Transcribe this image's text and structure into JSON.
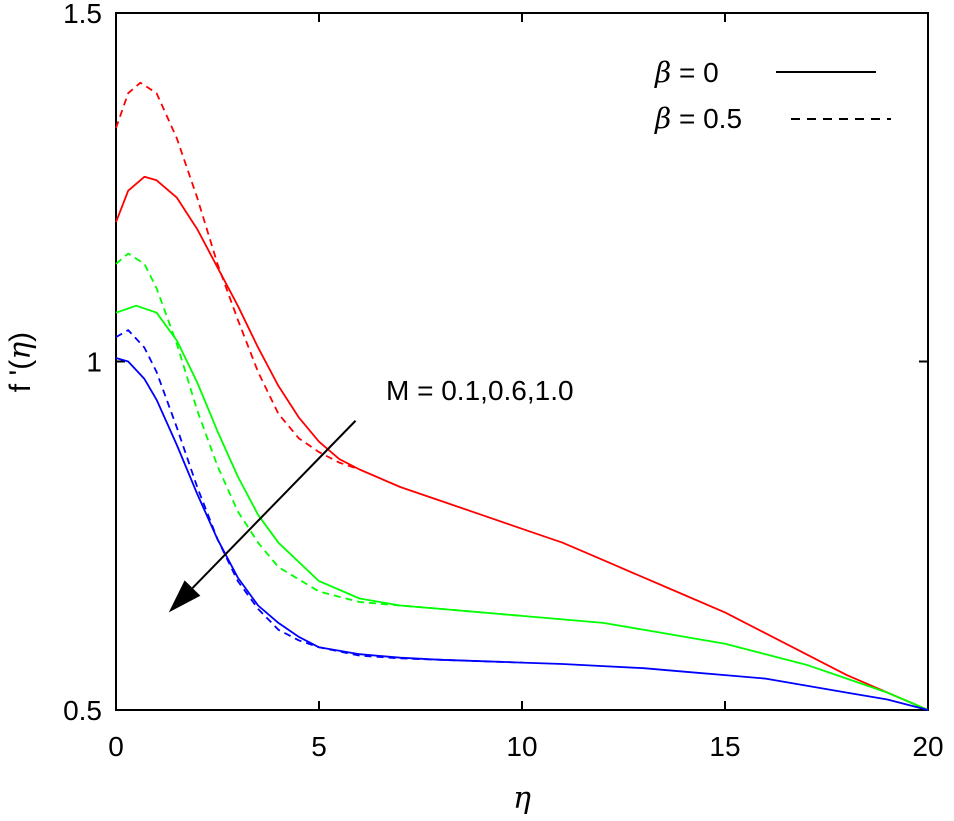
{
  "chart_data": {
    "type": "line",
    "xlabel": "η",
    "ylabel": "f '(η)",
    "ylabel_prefix": "f '(",
    "ylabel_var": "η",
    "ylabel_suffix": ")",
    "xlim": [
      0,
      20
    ],
    "ylim": [
      0.5,
      1.5
    ],
    "xticks": [
      0,
      5,
      10,
      15,
      20
    ],
    "xtick_labels": [
      "0",
      "5",
      "10",
      "15",
      "20"
    ],
    "yticks": [
      0.5,
      1,
      1.5
    ],
    "ytick_labels": [
      "0.5",
      "1",
      "1.5"
    ],
    "grid": false,
    "legend_position": "top-right",
    "legend": [
      {
        "symbol": "β",
        "label": " = 0",
        "dash": "solid"
      },
      {
        "symbol": "β",
        "label": " = 0.5",
        "dash": "dashed"
      }
    ],
    "annotation": {
      "text": "M = 0.1,0.6,1.0",
      "arrow_from": [
        5.9,
        0.915
      ],
      "arrow_to": [
        1.3,
        0.64
      ]
    },
    "colors": {
      "m01": "#ff0000",
      "m06": "#00ff00",
      "m10": "#0000ff"
    },
    "series": [
      {
        "M": 0.1,
        "beta": 0,
        "color": "#ff0000",
        "dash": "solid",
        "x": [
          0,
          0.3,
          0.7,
          1.0,
          1.5,
          2.0,
          2.5,
          3.0,
          3.5,
          4.0,
          4.5,
          5.0,
          5.5,
          6,
          7,
          8,
          9,
          10,
          11,
          12,
          13,
          14,
          15,
          16,
          17,
          18,
          19,
          20
        ],
        "y": [
          1.2,
          1.245,
          1.265,
          1.26,
          1.235,
          1.19,
          1.135,
          1.08,
          1.02,
          0.965,
          0.92,
          0.885,
          0.86,
          0.845,
          0.82,
          0.8,
          0.78,
          0.76,
          0.74,
          0.715,
          0.69,
          0.665,
          0.64,
          0.61,
          0.58,
          0.55,
          0.525,
          0.5
        ]
      },
      {
        "M": 0.1,
        "beta": 0.5,
        "color": "#ff0000",
        "dash": "dashed",
        "x": [
          0,
          0.3,
          0.6,
          1.0,
          1.5,
          2.0,
          2.5,
          3.0,
          3.5,
          4.0,
          4.5,
          5.0,
          5.5,
          6.0
        ],
        "y": [
          1.335,
          1.385,
          1.4,
          1.385,
          1.32,
          1.235,
          1.14,
          1.06,
          0.985,
          0.925,
          0.89,
          0.87,
          0.855,
          0.845
        ]
      },
      {
        "M": 0.6,
        "beta": 0,
        "color": "#00ff00",
        "dash": "solid",
        "x": [
          0,
          0.5,
          1.0,
          1.5,
          2.0,
          2.5,
          3.0,
          3.5,
          4.0,
          5.0,
          6.0,
          7,
          8,
          9,
          10,
          11,
          12,
          13,
          14,
          15,
          16,
          17,
          18,
          19,
          20
        ],
        "y": [
          1.07,
          1.08,
          1.07,
          1.03,
          0.97,
          0.9,
          0.835,
          0.78,
          0.74,
          0.685,
          0.66,
          0.65,
          0.645,
          0.64,
          0.635,
          0.63,
          0.625,
          0.615,
          0.605,
          0.595,
          0.58,
          0.565,
          0.545,
          0.525,
          0.5
        ]
      },
      {
        "M": 0.6,
        "beta": 0.5,
        "color": "#00ff00",
        "dash": "dashed",
        "x": [
          0,
          0.3,
          0.7,
          1.0,
          1.5,
          2.0,
          2.5,
          3.0,
          3.5,
          4.0,
          5.0,
          6.0,
          7.0,
          8.0,
          9.0,
          10.0
        ],
        "y": [
          1.14,
          1.155,
          1.14,
          1.105,
          1.025,
          0.93,
          0.85,
          0.785,
          0.74,
          0.705,
          0.67,
          0.655,
          0.65,
          0.645,
          0.64,
          0.635
        ]
      },
      {
        "M": 1.0,
        "beta": 0,
        "color": "#0000ff",
        "dash": "solid",
        "x": [
          0,
          0.3,
          0.7,
          1.0,
          1.5,
          2.0,
          2.5,
          3.0,
          3.5,
          4.0,
          4.5,
          5.0,
          6.0,
          7,
          8,
          9,
          10,
          11,
          12,
          13,
          14,
          15,
          16,
          17,
          18,
          19,
          20
        ],
        "y": [
          1.005,
          1.0,
          0.975,
          0.945,
          0.88,
          0.81,
          0.745,
          0.69,
          0.65,
          0.625,
          0.605,
          0.59,
          0.58,
          0.575,
          0.572,
          0.57,
          0.568,
          0.566,
          0.563,
          0.56,
          0.555,
          0.55,
          0.545,
          0.535,
          0.525,
          0.515,
          0.5
        ]
      },
      {
        "M": 1.0,
        "beta": 0.5,
        "color": "#0000ff",
        "dash": "dashed",
        "x": [
          0,
          0.3,
          0.7,
          1.0,
          1.5,
          2.0,
          2.5,
          3.0,
          3.5,
          4.0,
          4.5,
          5.0,
          6.0,
          7.0,
          8.0,
          9.0,
          10.0
        ],
        "y": [
          1.035,
          1.045,
          1.02,
          0.985,
          0.905,
          0.82,
          0.745,
          0.685,
          0.645,
          0.615,
          0.6,
          0.59,
          0.578,
          0.574,
          0.572,
          0.57,
          0.568
        ]
      }
    ]
  }
}
